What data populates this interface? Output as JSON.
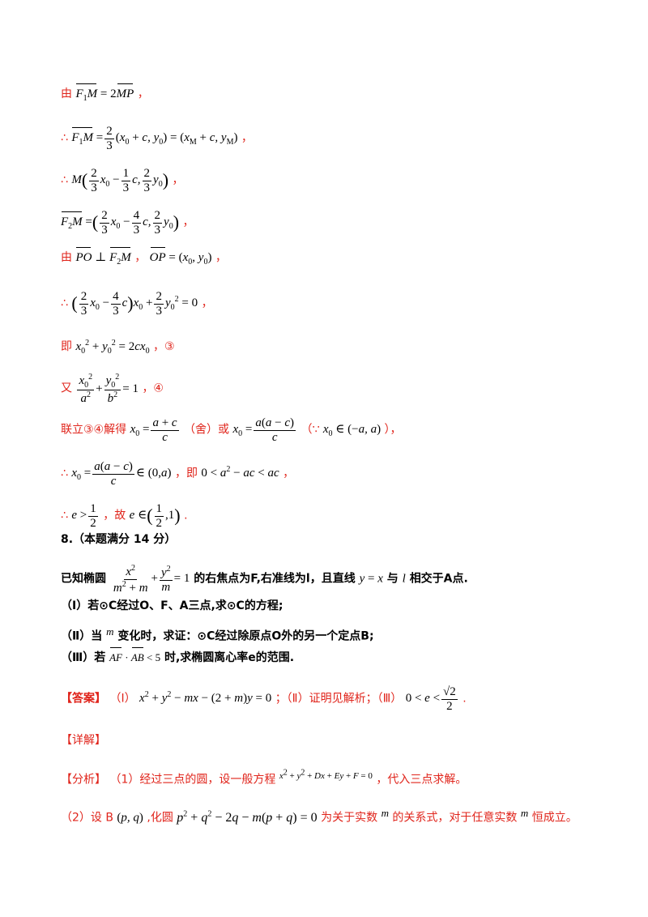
{
  "lines": {
    "l1": {
      "lead": "由",
      "tail": "，"
    },
    "l2": {
      "lead": "∴",
      "tail": "，"
    },
    "l3": {
      "lead": "∴",
      "tail": "，"
    },
    "l4": {
      "tail": "，"
    },
    "l5": {
      "lead": "由",
      "sep": "，",
      "tail": "，"
    },
    "l6": {
      "lead": "∴",
      "tail": "，"
    },
    "l7": {
      "lead": "即",
      "tail": "，③"
    },
    "l8": {
      "lead": "又",
      "tail": "，④"
    },
    "l9": {
      "lead": "联立③④解得",
      "mid1": "（舍）或",
      "mid2": "（∵",
      "tail": "），"
    },
    "l10": {
      "lead": "∴",
      "mid": "，即",
      "tail": "，"
    },
    "l11": {
      "lead": "∴",
      "mid": "，故",
      "tail": "."
    }
  },
  "problem": {
    "heading": "8.（本题满分 14 分）",
    "stem_a": "已知椭圆",
    "stem_b": "的右焦点为F,右准线为l，且直线",
    "stem_c": "与",
    "stem_d": "相交于A点.",
    "q1": "（Ⅰ）若⊙C经过O、F、A三点,求⊙C的方程;",
    "q2_a": "（Ⅱ）当",
    "q2_b": "变化时，求证：⊙C经过除原点O外的另一个定点B;",
    "q3_a": "（Ⅲ）若",
    "q3_b": "时,求椭圆离心率e的范围."
  },
  "answer": {
    "tag": "【答案】",
    "p1": "（Ⅰ）",
    "p2": "；（Ⅱ）证明见解析；（Ⅲ）",
    "tail": "."
  },
  "detail": {
    "tag": "【详解】"
  },
  "analysis": {
    "tag": "【分析】",
    "a1": "（1）经过三点的圆，设一般方程",
    "a1_tail": "，代入三点求解。",
    "a2_a": "（2）设 B",
    "a2_b": ",化圆",
    "a2_c": "为关于实数",
    "a2_d": "的关系式，对于任意实数",
    "a2_e": "恒成立。"
  }
}
